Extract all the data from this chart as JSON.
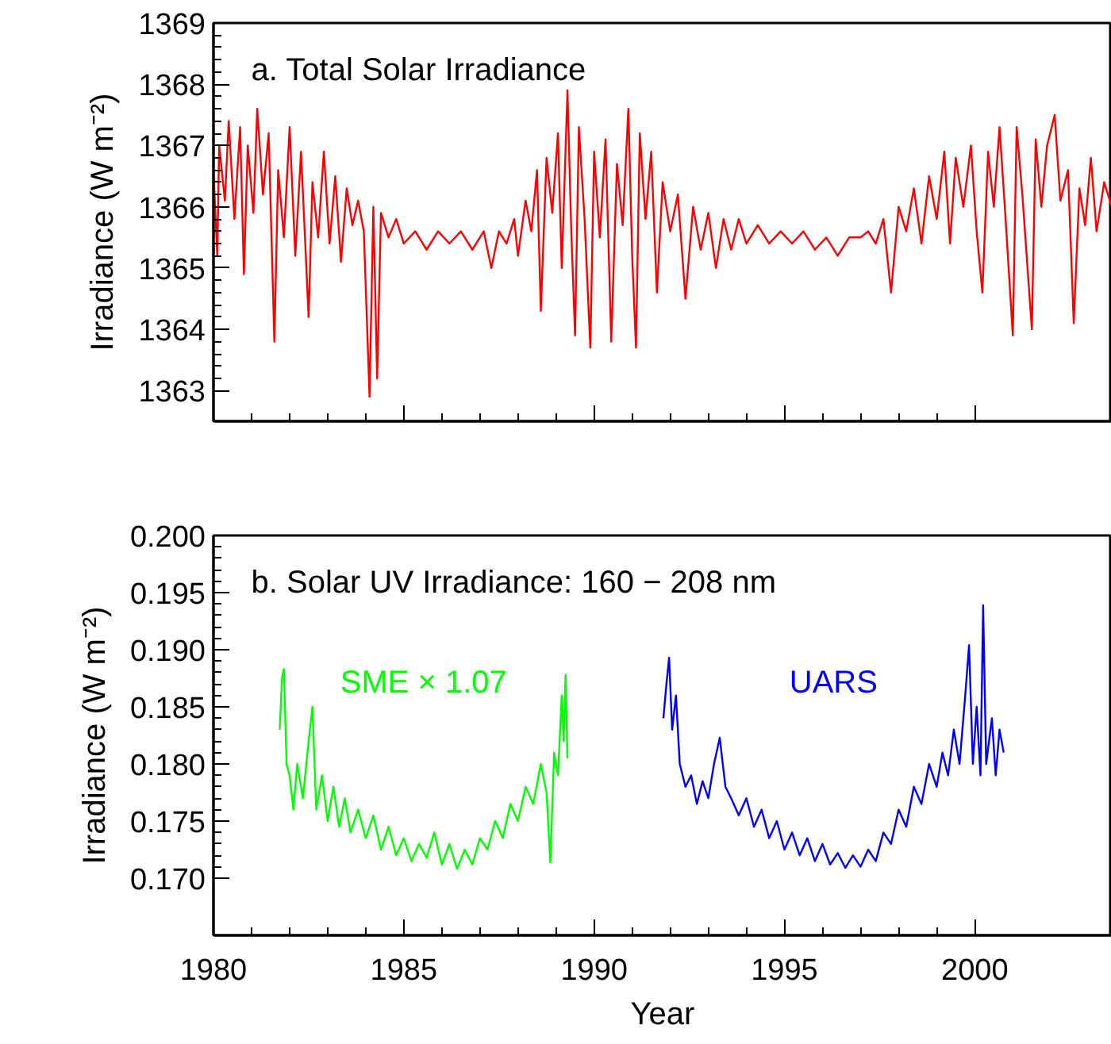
{
  "chart_data": [
    {
      "type": "line",
      "title": "a. Total Solar Irradiance",
      "ylabel": "Irradiance (W m⁻²)",
      "xlim": [
        1980,
        2003.6
      ],
      "xticks": [
        1980,
        1985,
        1990,
        1995,
        2000
      ],
      "ylim": [
        1362.5,
        1369
      ],
      "yticks": [
        1363,
        1364,
        1365,
        1366,
        1367,
        1368,
        1369
      ],
      "tick_labels": "y",
      "grid": false,
      "series": [
        {
          "color": "#ff0000",
          "x": [
            1980.0,
            1980.1,
            1980.15,
            1980.3,
            1980.4,
            1980.55,
            1980.7,
            1980.8,
            1980.9,
            1981.05,
            1981.15,
            1981.3,
            1981.45,
            1981.6,
            1981.7,
            1981.85,
            1982.0,
            1982.15,
            1982.3,
            1982.5,
            1982.6,
            1982.75,
            1982.9,
            1983.05,
            1983.2,
            1983.35,
            1983.5,
            1983.65,
            1983.8,
            1983.95,
            1984.1,
            1984.2,
            1984.3,
            1984.4,
            1984.6,
            1984.8,
            1985.0,
            1985.3,
            1985.6,
            1985.9,
            1986.2,
            1986.5,
            1986.8,
            1987.1,
            1987.3,
            1987.5,
            1987.7,
            1987.9,
            1988.0,
            1988.2,
            1988.35,
            1988.5,
            1988.6,
            1988.75,
            1988.9,
            1989.05,
            1989.15,
            1989.3,
            1989.4,
            1989.5,
            1989.6,
            1989.75,
            1989.9,
            1990.0,
            1990.15,
            1990.3,
            1990.45,
            1990.6,
            1990.75,
            1990.9,
            1991.0,
            1991.1,
            1991.2,
            1991.35,
            1991.5,
            1991.65,
            1991.8,
            1992.0,
            1992.2,
            1992.4,
            1992.6,
            1992.8,
            1993.0,
            1993.2,
            1993.4,
            1993.6,
            1993.8,
            1994.0,
            1994.3,
            1994.6,
            1994.9,
            1995.2,
            1995.5,
            1995.8,
            1996.1,
            1996.4,
            1996.7,
            1997.0,
            1997.2,
            1997.4,
            1997.6,
            1997.8,
            1998.0,
            1998.2,
            1998.4,
            1998.6,
            1998.8,
            1999.0,
            1999.2,
            1999.35,
            1999.5,
            1999.7,
            1999.9,
            2000.05,
            2000.2,
            2000.35,
            2000.5,
            2000.65,
            2000.8,
            2001.0,
            2001.1,
            2001.25,
            2001.5,
            2001.6,
            2001.75,
            2001.9,
            2002.1,
            2002.25,
            2002.45,
            2002.6,
            2002.75,
            2002.9,
            2003.05,
            2003.2,
            2003.4,
            2003.6
          ],
          "values": [
            1366.6,
            1365.2,
            1367.0,
            1366.1,
            1367.4,
            1365.8,
            1367.3,
            1364.9,
            1367.0,
            1365.9,
            1367.6,
            1366.2,
            1367.2,
            1363.8,
            1366.6,
            1365.5,
            1367.3,
            1365.2,
            1366.9,
            1364.2,
            1366.4,
            1365.5,
            1366.9,
            1365.4,
            1366.5,
            1365.1,
            1366.3,
            1365.7,
            1366.1,
            1365.6,
            1362.9,
            1366.0,
            1363.2,
            1365.9,
            1365.5,
            1365.8,
            1365.4,
            1365.6,
            1365.3,
            1365.6,
            1365.4,
            1365.6,
            1365.3,
            1365.6,
            1365.0,
            1365.6,
            1365.4,
            1365.8,
            1365.2,
            1366.1,
            1365.6,
            1366.6,
            1364.3,
            1366.8,
            1365.9,
            1367.2,
            1365.0,
            1367.9,
            1365.6,
            1363.9,
            1367.3,
            1365.8,
            1363.7,
            1366.9,
            1365.5,
            1367.1,
            1363.8,
            1366.7,
            1365.7,
            1367.6,
            1365.2,
            1363.7,
            1367.2,
            1365.8,
            1366.9,
            1364.6,
            1366.4,
            1365.6,
            1366.2,
            1364.5,
            1366.0,
            1365.3,
            1365.9,
            1365.0,
            1365.8,
            1365.3,
            1365.8,
            1365.4,
            1365.7,
            1365.4,
            1365.6,
            1365.4,
            1365.6,
            1365.3,
            1365.5,
            1365.2,
            1365.5,
            1365.5,
            1365.6,
            1365.4,
            1365.8,
            1364.6,
            1366.0,
            1365.6,
            1366.3,
            1365.4,
            1366.5,
            1365.8,
            1366.9,
            1365.4,
            1366.8,
            1366.0,
            1367.0,
            1365.6,
            1364.6,
            1366.9,
            1366.0,
            1367.3,
            1365.9,
            1363.9,
            1367.3,
            1366.2,
            1364.0,
            1367.1,
            1366.0,
            1367.0,
            1367.5,
            1366.1,
            1366.6,
            1364.1,
            1366.3,
            1365.7,
            1366.8,
            1365.6,
            1366.4,
            1366.0
          ]
        }
      ]
    },
    {
      "type": "line",
      "title": "b. Solar UV Irradiance: 160 − 208 nm",
      "xlabel": "Year",
      "ylabel": "Irradiance (W m⁻²)",
      "xlim": [
        1980,
        2003.6
      ],
      "xticks": [
        1980,
        1985,
        1990,
        1995,
        2000
      ],
      "ylim": [
        0.165,
        0.2
      ],
      "yticks": [
        {
          "value": 0.17,
          "label": "0.170"
        },
        {
          "value": 0.175,
          "label": "0.175"
        },
        {
          "value": 0.18,
          "label": "0.180"
        },
        {
          "value": 0.185,
          "label": "0.185"
        },
        {
          "value": 0.19,
          "label": "0.190"
        },
        {
          "value": 0.195,
          "label": "0.195"
        },
        {
          "value": 0.2,
          "label": "0.200"
        }
      ],
      "grid": false,
      "series": [
        {
          "name": "SME × 1.07",
          "color": "#00ff00",
          "x": [
            1981.74,
            1981.8,
            1981.85,
            1981.92,
            1982.0,
            1982.1,
            1982.2,
            1982.35,
            1982.5,
            1982.6,
            1982.7,
            1982.85,
            1983.0,
            1983.15,
            1983.3,
            1983.45,
            1983.6,
            1983.8,
            1984.0,
            1984.2,
            1984.4,
            1984.6,
            1984.8,
            1985.0,
            1985.2,
            1985.4,
            1985.6,
            1985.8,
            1986.0,
            1986.2,
            1986.4,
            1986.6,
            1986.8,
            1987.0,
            1987.2,
            1987.4,
            1987.6,
            1987.8,
            1988.0,
            1988.2,
            1988.4,
            1988.6,
            1988.75,
            1988.85,
            1988.95,
            1989.05,
            1989.15,
            1989.2,
            1989.25,
            1989.3
          ],
          "values": [
            0.183,
            0.1875,
            0.1883,
            0.18,
            0.179,
            0.176,
            0.18,
            0.177,
            0.182,
            0.185,
            0.176,
            0.179,
            0.175,
            0.178,
            0.1745,
            0.177,
            0.174,
            0.176,
            0.1735,
            0.1755,
            0.1725,
            0.1745,
            0.172,
            0.1735,
            0.1715,
            0.173,
            0.1718,
            0.174,
            0.1712,
            0.173,
            0.1708,
            0.1725,
            0.1712,
            0.1735,
            0.1725,
            0.175,
            0.1735,
            0.1765,
            0.175,
            0.178,
            0.1765,
            0.18,
            0.1775,
            0.1714,
            0.181,
            0.179,
            0.186,
            0.182,
            0.1878,
            0.1805
          ]
        },
        {
          "name": "UARS",
          "color": "#0000ff",
          "x": [
            1991.82,
            1991.9,
            1991.97,
            1992.05,
            1992.15,
            1992.25,
            1992.4,
            1992.55,
            1992.7,
            1992.85,
            1993.0,
            1993.15,
            1993.3,
            1993.45,
            1993.6,
            1993.8,
            1994.0,
            1994.2,
            1994.4,
            1994.6,
            1994.8,
            1995.0,
            1995.2,
            1995.4,
            1995.6,
            1995.8,
            1996.0,
            1996.2,
            1996.4,
            1996.6,
            1996.8,
            1997.0,
            1997.2,
            1997.4,
            1997.6,
            1997.8,
            1998.0,
            1998.2,
            1998.4,
            1998.6,
            1998.8,
            1999.0,
            1999.15,
            1999.3,
            1999.45,
            1999.6,
            1999.75,
            1999.85,
            1999.95,
            2000.05,
            2000.15,
            2000.22,
            2000.3,
            2000.45,
            2000.55,
            2000.65,
            2000.76
          ],
          "values": [
            0.184,
            0.187,
            0.1893,
            0.183,
            0.186,
            0.18,
            0.178,
            0.179,
            0.1765,
            0.1785,
            0.177,
            0.18,
            0.1823,
            0.178,
            0.177,
            0.1755,
            0.177,
            0.1745,
            0.176,
            0.1735,
            0.175,
            0.1725,
            0.174,
            0.172,
            0.1735,
            0.1715,
            0.173,
            0.1712,
            0.1722,
            0.1709,
            0.172,
            0.171,
            0.1725,
            0.1715,
            0.174,
            0.173,
            0.176,
            0.1745,
            0.178,
            0.1765,
            0.18,
            0.178,
            0.181,
            0.179,
            0.183,
            0.18,
            0.186,
            0.1904,
            0.18,
            0.185,
            0.179,
            0.1939,
            0.18,
            0.184,
            0.179,
            0.183,
            0.181
          ]
        }
      ]
    }
  ]
}
